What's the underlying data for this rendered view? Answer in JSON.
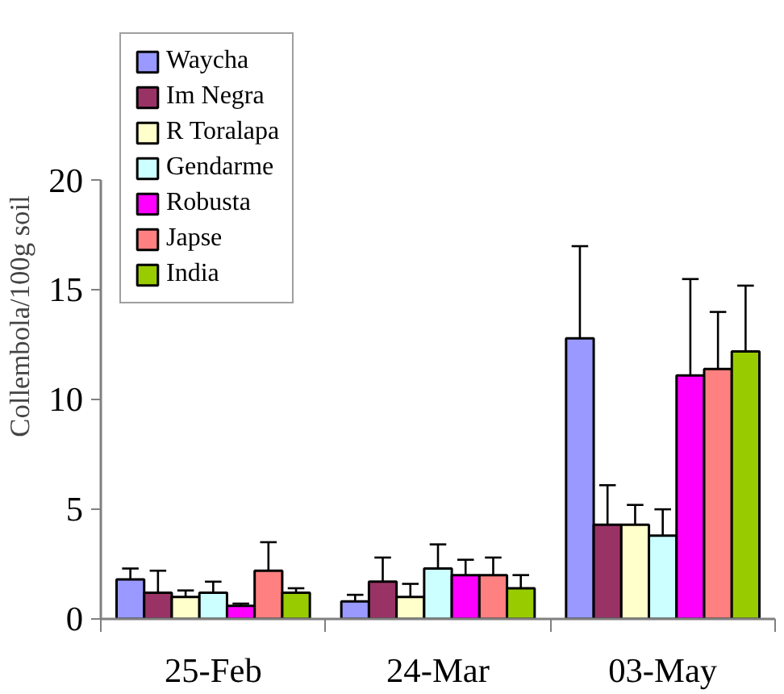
{
  "chart_data": {
    "type": "bar",
    "ylabel": "Collembola/100g soil",
    "categories": [
      "25-Feb",
      "24-Mar",
      "03-May"
    ],
    "ylim": [
      0,
      20
    ],
    "yticks": [
      0,
      5,
      10,
      15,
      20
    ],
    "grid": false,
    "legend": "top left",
    "series": [
      {
        "name": "Waycha",
        "color": "#9999ff",
        "values": [
          1.8,
          0.8,
          12.8
        ],
        "errors": [
          [
            1.8,
            2.3
          ],
          [
            0.8,
            1.1
          ],
          [
            12.8,
            17.0
          ]
        ]
      },
      {
        "name": "Im Negra",
        "color": "#993366",
        "values": [
          1.2,
          1.7,
          4.3
        ],
        "errors": [
          [
            1.2,
            2.2
          ],
          [
            1.7,
            2.8
          ],
          [
            4.3,
            6.1
          ]
        ]
      },
      {
        "name": "R Toralapa",
        "color": "#ffffcc",
        "values": [
          1.0,
          1.0,
          4.3
        ],
        "errors": [
          [
            1.0,
            1.3
          ],
          [
            1.0,
            1.6
          ],
          [
            4.3,
            5.2
          ]
        ]
      },
      {
        "name": "Gendarme",
        "color": "#ccffff",
        "values": [
          1.2,
          2.3,
          3.8
        ],
        "errors": [
          [
            1.2,
            1.7
          ],
          [
            2.3,
            3.4
          ],
          [
            3.8,
            5.0
          ]
        ]
      },
      {
        "name": "Robusta",
        "color": "#ff00ff",
        "values": [
          0.6,
          2.0,
          11.1
        ],
        "errors": [
          [
            0.6,
            0.7
          ],
          [
            2.0,
            2.7
          ],
          [
            11.1,
            15.5
          ]
        ]
      },
      {
        "name": "Japse",
        "color": "#ff8080",
        "values": [
          2.2,
          2.0,
          11.4
        ],
        "errors": [
          [
            2.2,
            3.5
          ],
          [
            2.0,
            2.8
          ],
          [
            11.4,
            14.0
          ]
        ]
      },
      {
        "name": "India",
        "color": "#99cc00",
        "values": [
          1.2,
          1.4,
          12.2
        ],
        "errors": [
          [
            1.2,
            1.4
          ],
          [
            1.4,
            2.0
          ],
          [
            12.2,
            15.2
          ]
        ]
      }
    ]
  }
}
